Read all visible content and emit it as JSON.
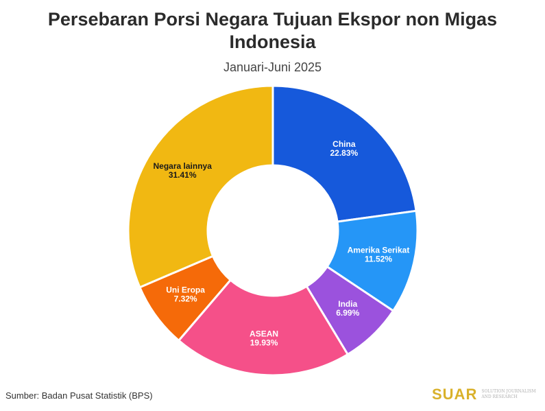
{
  "chart_data": {
    "type": "pie",
    "title_line1": "Persebaran Porsi Negara Tujuan Ekspor non Migas",
    "title_line2": "Indonesia",
    "subtitle": "Januari-Juni 2025",
    "slices": [
      {
        "name": "China",
        "value": 22.83,
        "label": "22.83%",
        "color": "#1659db",
        "text_color": "#ffffff"
      },
      {
        "name": "Amerika Serikat",
        "value": 11.52,
        "label": "11.52%",
        "color": "#2596f7",
        "text_color": "#ffffff"
      },
      {
        "name": "India",
        "value": 6.99,
        "label": "6.99%",
        "color": "#9b52dd",
        "text_color": "#ffffff"
      },
      {
        "name": "ASEAN",
        "value": 19.93,
        "label": "19.93%",
        "color": "#f55089",
        "text_color": "#ffffff"
      },
      {
        "name": "Uni Eropa",
        "value": 7.32,
        "label": "7.32%",
        "color": "#f56a09",
        "text_color": "#ffffff"
      },
      {
        "name": "Negara lainnya",
        "value": 31.41,
        "label": "31.41%",
        "color": "#f1b812",
        "text_color": "#1a1a1a"
      }
    ]
  },
  "footer": {
    "source": "Sumber: Badan Pusat Statistik (BPS)",
    "logo_text": "SUAR",
    "logo_tagline": "SOLUTION JOURNALISM AND RESEARCH"
  }
}
